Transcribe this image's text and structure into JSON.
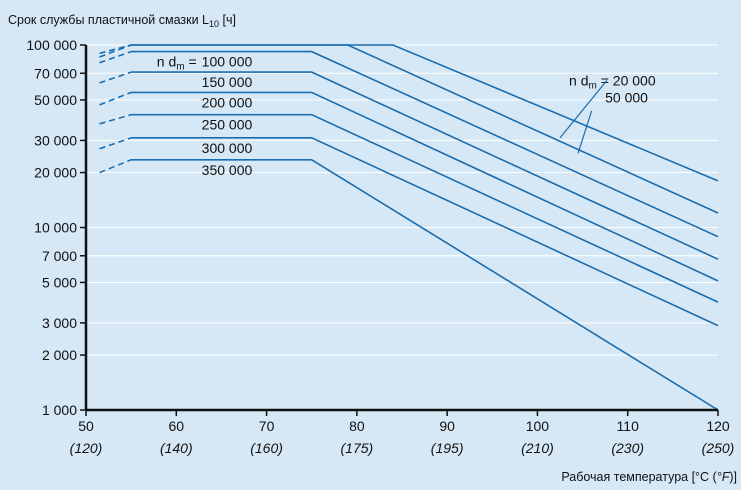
{
  "chart_data": {
    "type": "line",
    "title": {
      "text": "Срок службы пластичной смазки L",
      "sub": "10",
      "unit": " [ч]"
    },
    "xlabel": {
      "text": "Рабочая температура [°C (",
      "italic": "°F",
      "end": ")]"
    },
    "x_scale": "linear",
    "y_scale": "log",
    "xlim": [
      50,
      120
    ],
    "ylim": [
      1000,
      100000
    ],
    "grid": false,
    "colors": {
      "background": "#d6e8f5",
      "series": "#1a6db0",
      "axis": "#111111",
      "guide": "#ffffff"
    },
    "x_ticks": [
      {
        "value": 50,
        "label": "50",
        "f_label": "(120)"
      },
      {
        "value": 60,
        "label": "60",
        "f_label": "(140)"
      },
      {
        "value": 70,
        "label": "70",
        "f_label": "(160)"
      },
      {
        "value": 80,
        "label": "80",
        "f_label": "(175)"
      },
      {
        "value": 90,
        "label": "90",
        "f_label": "(195)"
      },
      {
        "value": 100,
        "label": "100",
        "f_label": "(210)"
      },
      {
        "value": 110,
        "label": "110",
        "f_label": "(230)"
      },
      {
        "value": 120,
        "label": "120",
        "f_label": "(250)"
      }
    ],
    "y_ticks": [
      {
        "value": 100000,
        "label": "100 000"
      },
      {
        "value": 70000,
        "label": "70 000"
      },
      {
        "value": 50000,
        "label": "50 000"
      },
      {
        "value": 30000,
        "label": "30 000"
      },
      {
        "value": 20000,
        "label": "20 000"
      },
      {
        "value": 10000,
        "label": "10 000"
      },
      {
        "value": 7000,
        "label": "7 000"
      },
      {
        "value": 5000,
        "label": "5 000"
      },
      {
        "value": 3000,
        "label": "3 000"
      },
      {
        "value": 2000,
        "label": "2 000"
      },
      {
        "value": 1000,
        "label": "1 000"
      }
    ],
    "series": [
      {
        "name": "350 000",
        "x": [
          51.5,
          55,
          75,
          120
        ],
        "y": [
          20000,
          23500,
          23500,
          1000
        ],
        "label_anchor": [
          55.5,
          23500
        ],
        "label_below": true
      },
      {
        "name": "300 000",
        "x": [
          51.5,
          55,
          75,
          120
        ],
        "y": [
          27000,
          31000,
          31000,
          2900
        ],
        "label_anchor": [
          55.5,
          31000
        ],
        "label_below": true
      },
      {
        "name": "250 000",
        "x": [
          51.5,
          55,
          75,
          120
        ],
        "y": [
          37000,
          41500,
          41500,
          3900
        ],
        "label_anchor": [
          55.5,
          41500
        ],
        "label_below": true
      },
      {
        "name": "200 000",
        "x": [
          51.5,
          55,
          75,
          120
        ],
        "y": [
          47000,
          55000,
          55000,
          5100
        ],
        "label_anchor": [
          55.5,
          55000
        ],
        "label_below": true
      },
      {
        "name": "150 000",
        "x": [
          51.5,
          55,
          75,
          120
        ],
        "y": [
          62000,
          71000,
          71000,
          6700
        ],
        "label_anchor": [
          55.5,
          71000
        ],
        "label_below": true
      },
      {
        "name": "100 000",
        "x": [
          51.5,
          55,
          75,
          120
        ],
        "y": [
          80000,
          92000,
          92000,
          8900
        ],
        "label_anchor": [
          55.5,
          92000
        ],
        "label_below": true
      },
      {
        "name": "50 000",
        "x": [
          51.5,
          55,
          79,
          120
        ],
        "y": [
          86000,
          100000,
          100000,
          12000
        ],
        "label_anchor": null
      },
      {
        "name": "20 000",
        "x": [
          51.5,
          55,
          84,
          120
        ],
        "y": [
          90000,
          100000,
          100000,
          18000
        ],
        "label_anchor": null
      }
    ],
    "outer_labels": [
      {
        "prefix": "n d",
        "sub": "m",
        "text": " = 20 000",
        "anchor": [
          103.5,
          60000
        ]
      },
      {
        "text": "50 000",
        "anchor": [
          107.5,
          48500
        ]
      }
    ],
    "inner_prefix": {
      "prefix": "n d",
      "sub": "m",
      "text": " = ",
      "value": "100 000"
    },
    "leaders": [
      {
        "from": [
          107.7,
          64000
        ],
        "to": [
          102.5,
          31000
        ]
      },
      {
        "from": [
          106.0,
          43500
        ],
        "to": [
          104.5,
          25500
        ]
      }
    ]
  }
}
